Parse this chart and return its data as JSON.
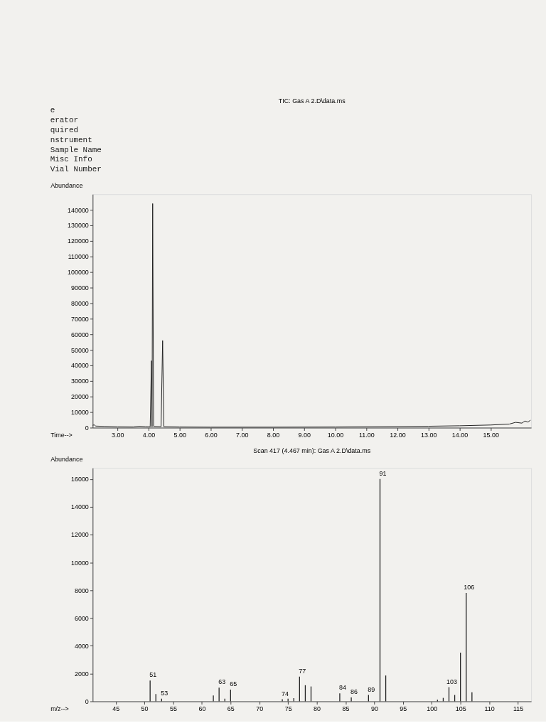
{
  "chart_data": [
    {
      "type": "line",
      "title": "TIC: Gas A 2.D\\data.ms",
      "xlabel": "Time-->",
      "ylabel": "Abundance",
      "annotations": [
        "e",
        "erator",
        "quired",
        "nstrument",
        "Sample Name",
        "Misc Info",
        "Vial Number"
      ],
      "series": [
        {
          "color": "#222222",
          "x": [
            2.2,
            2.25,
            2.3,
            2.6,
            3.0,
            3.5,
            3.7,
            3.9,
            4.05,
            4.09,
            4.11,
            4.13,
            4.16,
            4.4,
            4.45,
            4.49,
            5.0,
            6.0,
            8.0,
            10.0,
            12.0,
            13.0,
            14.0,
            15.0,
            15.6,
            15.8,
            16.0,
            16.1,
            16.2,
            16.28
          ],
          "values": [
            1500,
            1800,
            1000,
            800,
            500,
            400,
            900,
            600,
            500,
            43000,
            500,
            144000,
            800,
            600,
            56000,
            600,
            400,
            300,
            300,
            400,
            700,
            900,
            1200,
            1700,
            2300,
            3400,
            2900,
            4200,
            3600,
            4800
          ]
        }
      ],
      "xlim": [
        2.2,
        16.3
      ],
      "ylim": [
        0,
        150000
      ],
      "xticks": [
        {
          "value": 3,
          "label": "3.00"
        },
        {
          "value": 4,
          "label": "4.00"
        },
        {
          "value": 5,
          "label": "5.00"
        },
        {
          "value": 6,
          "label": "6.00"
        },
        {
          "value": 7,
          "label": "7.00"
        },
        {
          "value": 8,
          "label": "8.00"
        },
        {
          "value": 9,
          "label": "9.00"
        },
        {
          "value": 10,
          "label": "10.00"
        },
        {
          "value": 11,
          "label": "11.00"
        },
        {
          "value": 12,
          "label": "12.00"
        },
        {
          "value": 13,
          "label": "13.00"
        },
        {
          "value": 14,
          "label": "14.00"
        },
        {
          "value": 15,
          "label": "15.00"
        }
      ],
      "yticks": [
        0,
        10000,
        20000,
        30000,
        40000,
        50000,
        60000,
        70000,
        80000,
        90000,
        100000,
        110000,
        120000,
        130000,
        140000
      ],
      "grid": false,
      "marker": "none",
      "line_style": "solid"
    },
    {
      "type": "bar",
      "title": "Scan 417 (4.467 min): Gas A 2.D\\data.ms",
      "xlabel": "m/z-->",
      "ylabel": "Abundance",
      "x": [
        51,
        52,
        53,
        62,
        63,
        64,
        65,
        74,
        75,
        76,
        77,
        78,
        79,
        84,
        86,
        89,
        91,
        92,
        101,
        102,
        103,
        104,
        105,
        106,
        107
      ],
      "series": [
        {
          "color": "#222222",
          "values": [
            1500,
            520,
            190,
            420,
            980,
            190,
            850,
            150,
            190,
            230,
            1780,
            1160,
            1070,
            570,
            280,
            460,
            16000,
            1860,
            120,
            250,
            1020,
            460,
            3500,
            7800,
            650
          ]
        }
      ],
      "value_labels": [
        "51",
        null,
        "53",
        null,
        "63",
        null,
        "65",
        "74",
        null,
        null,
        "77",
        null,
        null,
        "84",
        "86",
        "89",
        "91",
        null,
        null,
        null,
        "103",
        null,
        null,
        "106",
        null
      ],
      "xlim": [
        41,
        117.3
      ],
      "ylim": [
        0,
        16800
      ],
      "xticks": [
        45,
        50,
        55,
        60,
        65,
        70,
        75,
        80,
        85,
        90,
        95,
        100,
        105,
        110,
        115
      ],
      "yticks": [
        0,
        2000,
        4000,
        6000,
        8000,
        10000,
        12000,
        14000,
        16000
      ],
      "grid": false
    }
  ]
}
